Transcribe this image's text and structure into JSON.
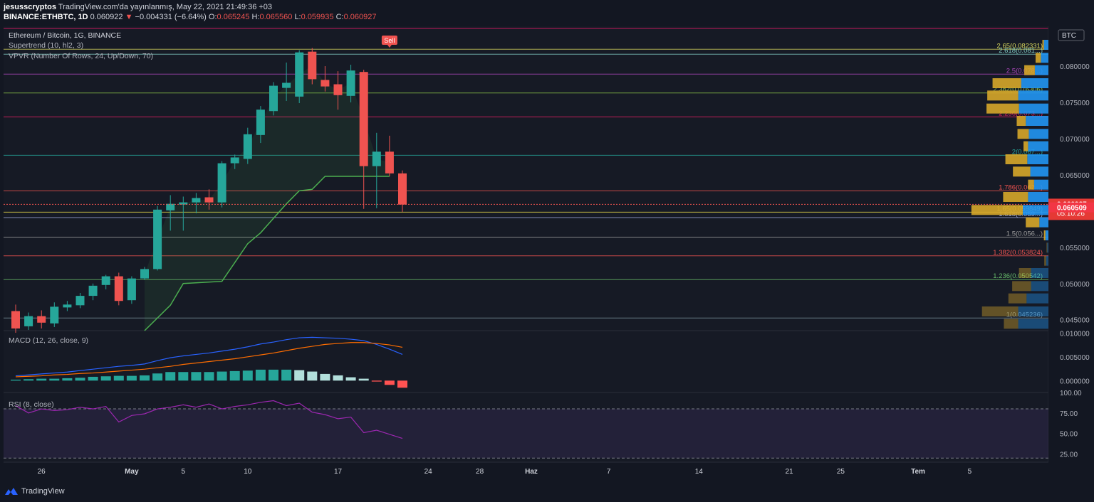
{
  "header": {
    "publisher": "jesusscryptos",
    "published_text": "TradingView.com'da yayınlanmış, May 22, 2021 21:49:36 +03",
    "symbol": "BINANCE:ETHBTC, 1D",
    "price": "0.060922",
    "change_arrow": "▼",
    "change": "−0.004331 (−6.64%)",
    "o_label": "O:",
    "o_value": "0.065245",
    "h_label": "H:",
    "h_value": "0.065560",
    "l_label": "L:",
    "l_value": "0.059935",
    "c_label": "C:",
    "c_value": "0.060927"
  },
  "legend": {
    "title": "Ethereum / Bitcoin, 1G, BINANCE",
    "supertrend": "Supertrend (10, hl2, 3)",
    "vpvr": "VPVR (Number Of Rows, 24, Up/Down, 70)",
    "macd": "MACD (12, 26, close, 9)",
    "rsi": "RSI (8, close)"
  },
  "footer": {
    "brand": "TradingView"
  },
  "colors": {
    "background": "#131722",
    "up": "#26a69a",
    "down": "#ef5350",
    "supertrend": "#4caf50",
    "macd_line": "#2962ff",
    "signal_line": "#ff6d00",
    "rsi": "#9c27b0",
    "vpvr_up": "#2196f3",
    "vpvr_down": "#d6a72a"
  },
  "chart_data": {
    "type": "candlestick",
    "currency": "BTC",
    "price_axis": {
      "min": 0.0435,
      "max": 0.0855,
      "ticks": [
        "0.080000",
        "0.075000",
        "0.070000",
        "0.065000",
        "0.055000",
        "0.050000",
        "0.045000"
      ]
    },
    "time_axis": {
      "labels": [
        {
          "text": "26",
          "slot": 2
        },
        {
          "text": "May",
          "slot": 9
        },
        {
          "text": "5",
          "slot": 13
        },
        {
          "text": "10",
          "slot": 18
        },
        {
          "text": "17",
          "slot": 25
        },
        {
          "text": "24",
          "slot": 32
        },
        {
          "text": "28",
          "slot": 36
        },
        {
          "text": "Haz",
          "slot": 40
        },
        {
          "text": "7",
          "slot": 46
        },
        {
          "text": "14",
          "slot": 53
        },
        {
          "text": "21",
          "slot": 60
        },
        {
          "text": "25",
          "slot": 64
        },
        {
          "text": "Tem",
          "slot": 70
        },
        {
          "text": "5",
          "slot": 74
        }
      ]
    },
    "candles": [
      {
        "o": 0.0462,
        "h": 0.0471,
        "l": 0.0432,
        "c": 0.0438
      },
      {
        "o": 0.0441,
        "h": 0.046,
        "l": 0.0436,
        "c": 0.0455
      },
      {
        "o": 0.0455,
        "h": 0.0463,
        "l": 0.0438,
        "c": 0.0446
      },
      {
        "o": 0.0445,
        "h": 0.0474,
        "l": 0.044,
        "c": 0.0468
      },
      {
        "o": 0.0467,
        "h": 0.0476,
        "l": 0.0462,
        "c": 0.0471
      },
      {
        "o": 0.047,
        "h": 0.0487,
        "l": 0.0466,
        "c": 0.0483
      },
      {
        "o": 0.0483,
        "h": 0.05,
        "l": 0.0477,
        "c": 0.0497
      },
      {
        "o": 0.0498,
        "h": 0.0512,
        "l": 0.0492,
        "c": 0.051
      },
      {
        "o": 0.051,
        "h": 0.0515,
        "l": 0.047,
        "c": 0.0476
      },
      {
        "o": 0.0477,
        "h": 0.051,
        "l": 0.0472,
        "c": 0.0507
      },
      {
        "o": 0.0507,
        "h": 0.0523,
        "l": 0.0505,
        "c": 0.052
      },
      {
        "o": 0.052,
        "h": 0.0607,
        "l": 0.0518,
        "c": 0.0602
      },
      {
        "o": 0.0601,
        "h": 0.0622,
        "l": 0.0573,
        "c": 0.061
      },
      {
        "o": 0.0609,
        "h": 0.062,
        "l": 0.0573,
        "c": 0.0612
      },
      {
        "o": 0.0612,
        "h": 0.0625,
        "l": 0.0597,
        "c": 0.0618
      },
      {
        "o": 0.0619,
        "h": 0.063,
        "l": 0.0602,
        "c": 0.0612
      },
      {
        "o": 0.0612,
        "h": 0.0669,
        "l": 0.0605,
        "c": 0.0666
      },
      {
        "o": 0.0666,
        "h": 0.0678,
        "l": 0.0658,
        "c": 0.0674
      },
      {
        "o": 0.0672,
        "h": 0.0715,
        "l": 0.0665,
        "c": 0.0706
      },
      {
        "o": 0.0705,
        "h": 0.0745,
        "l": 0.0694,
        "c": 0.074
      },
      {
        "o": 0.0738,
        "h": 0.0778,
        "l": 0.0732,
        "c": 0.0773
      },
      {
        "o": 0.077,
        "h": 0.0805,
        "l": 0.0752,
        "c": 0.0777
      },
      {
        "o": 0.0758,
        "h": 0.0822,
        "l": 0.0749,
        "c": 0.0819
      },
      {
        "o": 0.082,
        "h": 0.0825,
        "l": 0.0775,
        "c": 0.0782
      },
      {
        "o": 0.0781,
        "h": 0.08,
        "l": 0.0765,
        "c": 0.0772
      },
      {
        "o": 0.0775,
        "h": 0.0793,
        "l": 0.074,
        "c": 0.076
      },
      {
        "o": 0.0759,
        "h": 0.0802,
        "l": 0.075,
        "c": 0.0794
      },
      {
        "o": 0.0792,
        "h": 0.0795,
        "l": 0.0603,
        "c": 0.0662
      },
      {
        "o": 0.0662,
        "h": 0.0708,
        "l": 0.0604,
        "c": 0.0682
      },
      {
        "o": 0.0682,
        "h": 0.0704,
        "l": 0.0648,
        "c": 0.0652
      },
      {
        "o": 0.0652,
        "h": 0.0656,
        "l": 0.0599,
        "c": 0.0609
      }
    ],
    "supertrend": [
      {
        "i": 10,
        "v": 0.0435
      },
      {
        "i": 12,
        "v": 0.047
      },
      {
        "i": 13,
        "v": 0.05
      },
      {
        "i": 16,
        "v": 0.0503
      },
      {
        "i": 18,
        "v": 0.0555
      },
      {
        "i": 19,
        "v": 0.057
      },
      {
        "i": 21,
        "v": 0.061
      },
      {
        "i": 22,
        "v": 0.0628
      },
      {
        "i": 23,
        "v": 0.063
      },
      {
        "i": 24,
        "v": 0.0648
      },
      {
        "i": 29,
        "v": 0.0648
      }
    ],
    "fib_levels": [
      {
        "label": "2.65(0.082331)",
        "value": 0.082331,
        "color": "#d4d45c"
      },
      {
        "label": "2.618(0.081...)",
        "value": 0.08165,
        "color": "#80cbc4"
      },
      {
        "label": "2.5(0.078...)",
        "value": 0.0789,
        "color": "#ab47bc"
      },
      {
        "label": "2.382(0.076306)",
        "value": 0.076306,
        "color": "#8bc34a"
      },
      {
        "label": "2.236(0.073...)",
        "value": 0.073,
        "color": "#e91e63"
      },
      {
        "label": "2(0.067...)",
        "value": 0.0677,
        "color": "#26a69a"
      },
      {
        "label": "1.786(0.062...)",
        "value": 0.0628,
        "color": "#ef5350"
      },
      {
        "label": "1.65(0.059849)",
        "value": 0.059849,
        "color": "#f0e14a"
      },
      {
        "label": "1.618(0.059...)",
        "value": 0.0591,
        "color": "#9fa8da"
      },
      {
        "label": "1.5(0.056...)",
        "value": 0.0564,
        "color": "#9e9e9e"
      },
      {
        "label": "1.382(0.053824)",
        "value": 0.053824,
        "color": "#ef5350"
      },
      {
        "label": "1.236(0.050542)",
        "value": 0.050542,
        "color": "#66bb6a"
      },
      {
        "label": "1(0.045236)",
        "value": 0.045236,
        "color": "#78909c"
      }
    ],
    "last_price": "0.060927",
    "countdown": "05:10:26",
    "ask_price": "0.060509",
    "sell_label": "Sell",
    "vpvr": [
      {
        "p": 0.0829,
        "up": 1.2,
        "down": 0.4
      },
      {
        "p": 0.0811,
        "up": 2.0,
        "down": 1.4
      },
      {
        "p": 0.0794,
        "up": 3.6,
        "down": 2.8
      },
      {
        "p": 0.0776,
        "up": 7.2,
        "down": 7.6
      },
      {
        "p": 0.0759,
        "up": 8.0,
        "down": 8.2
      },
      {
        "p": 0.0741,
        "up": 7.8,
        "down": 8.6
      },
      {
        "p": 0.0724,
        "up": 6.0,
        "down": 2.4
      },
      {
        "p": 0.0706,
        "up": 5.2,
        "down": 3.0
      },
      {
        "p": 0.0689,
        "up": 5.4,
        "down": 1.2
      },
      {
        "p": 0.0671,
        "up": 5.6,
        "down": 5.8
      },
      {
        "p": 0.0654,
        "up": 4.8,
        "down": 4.6
      },
      {
        "p": 0.0636,
        "up": 3.8,
        "down": 1.6
      },
      {
        "p": 0.0619,
        "up": 5.4,
        "down": 6.6
      },
      {
        "p": 0.0601,
        "up": 6.8,
        "down": 13.6
      },
      {
        "p": 0.0584,
        "up": 2.4,
        "down": 3.6
      },
      {
        "p": 0.0566,
        "up": 0.8,
        "down": 0.4
      },
      {
        "p": 0.0549,
        "up": 0.3,
        "down": 0.2
      },
      {
        "p": 0.0531,
        "up": 0.6,
        "down": 0.5
      },
      {
        "p": 0.0514,
        "up": 4.6,
        "down": 3.2
      },
      {
        "p": 0.0496,
        "up": 4.6,
        "down": 5.0
      },
      {
        "p": 0.0479,
        "up": 5.8,
        "down": 4.8
      },
      {
        "p": 0.0461,
        "up": 8.0,
        "down": 9.6
      },
      {
        "p": 0.0444,
        "up": 8.0,
        "down": 3.8
      }
    ],
    "macd": {
      "axis": {
        "min": -0.0025,
        "max": 0.0105,
        "ticks": [
          "0.010000",
          "0.005000",
          "0.000000"
        ]
      },
      "macd": [
        0.001,
        0.0012,
        0.0014,
        0.0016,
        0.0018,
        0.0021,
        0.0024,
        0.0027,
        0.003,
        0.0032,
        0.0035,
        0.0042,
        0.0048,
        0.0052,
        0.0055,
        0.0058,
        0.0062,
        0.0066,
        0.0071,
        0.0077,
        0.0081,
        0.0086,
        0.009,
        0.0091,
        0.009,
        0.0089,
        0.0087,
        0.0084,
        0.0076,
        0.0066,
        0.0055
      ],
      "signal": [
        0.0008,
        0.0009,
        0.001,
        0.0012,
        0.0013,
        0.0015,
        0.0016,
        0.0018,
        0.002,
        0.0022,
        0.0024,
        0.0027,
        0.003,
        0.0034,
        0.0037,
        0.004,
        0.0043,
        0.0046,
        0.005,
        0.0054,
        0.0058,
        0.0063,
        0.0068,
        0.0072,
        0.0076,
        0.0078,
        0.008,
        0.008,
        0.0078,
        0.0075,
        0.007
      ],
      "histogram": [
        0.0002,
        0.0003,
        0.0004,
        0.0004,
        0.0005,
        0.0006,
        0.0008,
        0.0009,
        0.001,
        0.001,
        0.0011,
        0.0015,
        0.0018,
        0.0018,
        0.0018,
        0.0018,
        0.0019,
        0.002,
        0.0021,
        0.0023,
        0.0023,
        0.0023,
        0.0022,
        0.0019,
        0.0014,
        0.0011,
        0.0007,
        0.0004,
        -0.0002,
        -0.0009,
        -0.0015
      ]
    },
    "rsi": {
      "axis": {
        "min": 15,
        "max": 100,
        "ticks": [
          "100.00",
          "75.00",
          "50.00",
          "25.00"
        ]
      },
      "bands": [
        80,
        20
      ],
      "values": [
        84,
        75,
        80,
        78,
        79,
        82,
        80,
        83,
        64,
        72,
        74,
        80,
        82,
        85,
        82,
        86,
        80,
        83,
        85,
        88,
        90,
        84,
        87,
        76,
        73,
        68,
        70,
        51,
        54,
        49,
        44
      ]
    }
  }
}
